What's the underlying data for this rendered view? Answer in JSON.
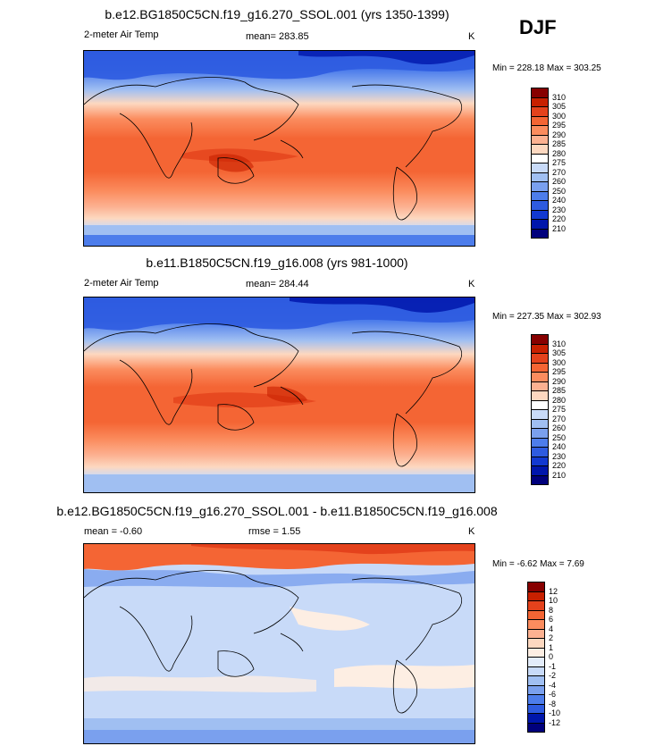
{
  "season": "DJF",
  "panels": [
    {
      "title": "b.e12.BG1850C5CN.f19_g16.270_SSOL.001 (yrs 1350-1399)",
      "left_label": "2-meter Air Temp",
      "center_label": "mean= 283.85",
      "units": "K",
      "min_max": "Min = 228.18 Max = 303.25"
    },
    {
      "title": "b.e11.B1850C5CN.f19_g16.008 (yrs 981-1000)",
      "left_label": "2-meter Air Temp",
      "center_label": "mean= 284.44",
      "units": "K",
      "min_max": "Min = 227.35 Max = 302.93"
    },
    {
      "title": "b.e12.BG1850C5CN.f19_g16.270_SSOL.001 - b.e11.B1850C5CN.f19_g16.008",
      "left_label": "mean =  -0.60",
      "center_label": "rmse =   1.55",
      "units": "K",
      "min_max": "Min =  -6.62 Max =   7.69"
    }
  ],
  "chart_data": [
    {
      "type": "heatmap",
      "variable": "2-meter Air Temp",
      "units": "K",
      "mean": 283.85,
      "min": 228.18,
      "max": 303.25,
      "colorbar": {
        "levels": [
          310,
          305,
          300,
          295,
          290,
          285,
          280,
          275,
          270,
          260,
          250,
          240,
          230,
          220,
          210
        ],
        "colors": [
          "#870000",
          "#c82000",
          "#e4421c",
          "#f46534",
          "#fb8c5e",
          "#fcb191",
          "#fdd8c0",
          "#ffffff",
          "#c8daf8",
          "#a0bff2",
          "#7aa0ee",
          "#4d7deb",
          "#2e5be0",
          "#1239d1",
          "#0016ab",
          "#00007c"
        ]
      }
    },
    {
      "type": "heatmap",
      "variable": "2-meter Air Temp",
      "units": "K",
      "mean": 284.44,
      "min": 227.35,
      "max": 302.93,
      "colorbar": {
        "levels": [
          310,
          305,
          300,
          295,
          290,
          285,
          280,
          275,
          270,
          260,
          250,
          240,
          230,
          220,
          210
        ],
        "colors": [
          "#870000",
          "#c82000",
          "#e4421c",
          "#f46534",
          "#fb8c5e",
          "#fcb191",
          "#fdd8c0",
          "#ffffff",
          "#c8daf8",
          "#a0bff2",
          "#7aa0ee",
          "#4d7deb",
          "#2e5be0",
          "#1239d1",
          "#0016ab",
          "#00007c"
        ]
      }
    },
    {
      "type": "heatmap",
      "variable": "difference",
      "units": "K",
      "mean": -0.6,
      "rmse": 1.55,
      "min": -6.62,
      "max": 7.69,
      "colorbar": {
        "levels": [
          12,
          10,
          8,
          6,
          4,
          2,
          1,
          0,
          -1,
          -2,
          -4,
          -6,
          -8,
          -10,
          -12
        ],
        "colors": [
          "#870000",
          "#c82000",
          "#e4421c",
          "#f46534",
          "#fb8c5e",
          "#fcb191",
          "#fdd8c0",
          "#fdeee3",
          "#e3ecfa",
          "#c8daf8",
          "#a0bff2",
          "#7aa0ee",
          "#4d7deb",
          "#2e5be0",
          "#0016ab",
          "#00007c"
        ]
      }
    }
  ]
}
